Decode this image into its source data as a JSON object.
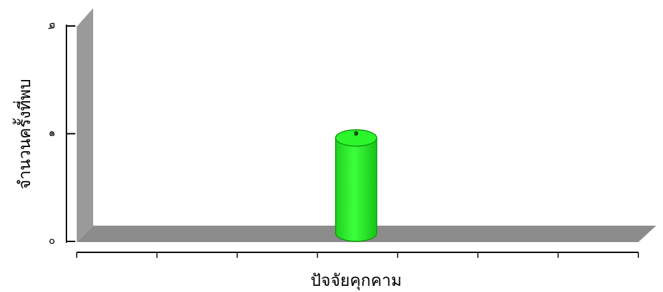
{
  "chart_data": {
    "type": "bar",
    "style": "3d-cylinder",
    "xlabel": "ปัจจัยคุกคาม",
    "ylabel": "จำนวนครั้งที่พบ",
    "ylim": [
      0,
      2
    ],
    "yticks": [
      "๐",
      "๑",
      "๒"
    ],
    "bar_color": "#22ee22",
    "categories": [
      ""
    ],
    "values": [
      1.1
    ],
    "data_labels": [
      "๑"
    ],
    "grid": false,
    "legend": "none"
  }
}
